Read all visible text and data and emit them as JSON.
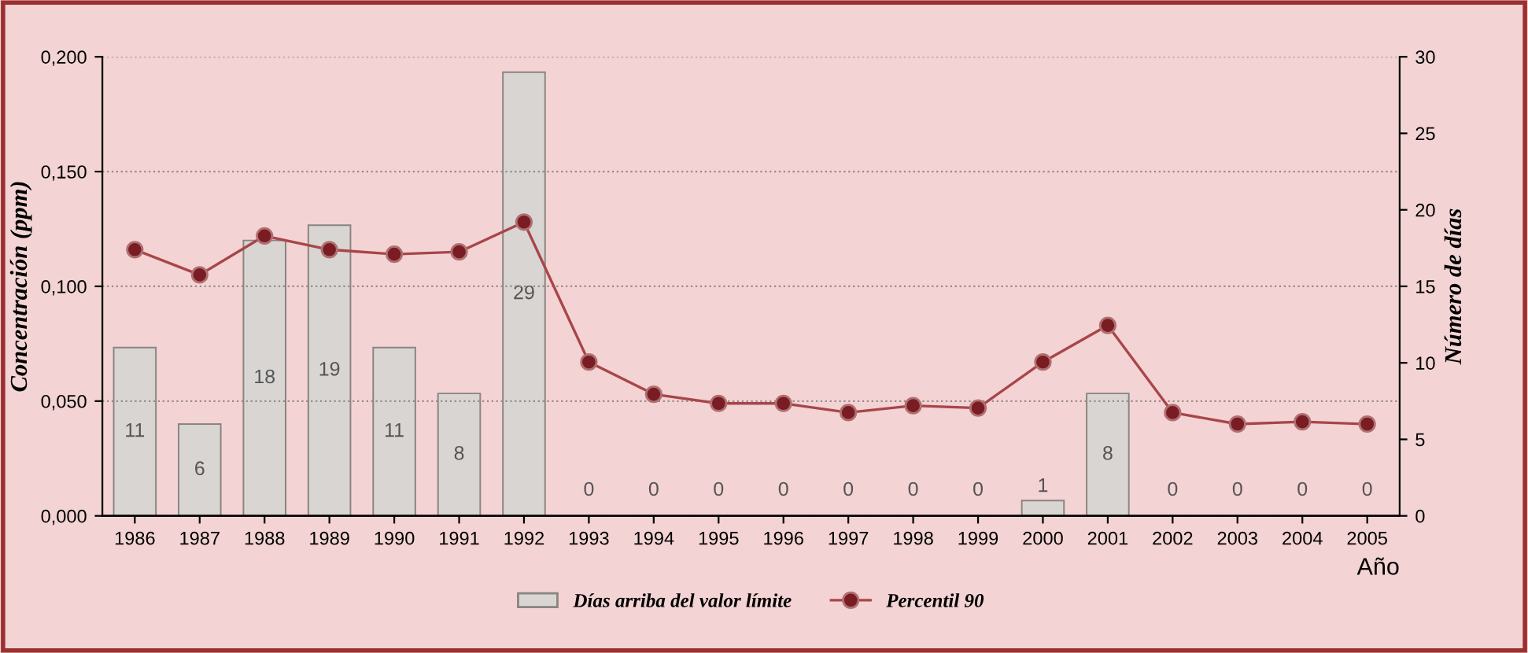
{
  "chart_data": {
    "type": "bar",
    "categories": [
      "1986",
      "1987",
      "1988",
      "1989",
      "1990",
      "1991",
      "1992",
      "1993",
      "1994",
      "1995",
      "1996",
      "1997",
      "1998",
      "1999",
      "2000",
      "2001",
      "2002",
      "2003",
      "2004",
      "2005"
    ],
    "series": [
      {
        "name": "Días arriba del valor límite",
        "axis": "y2",
        "color": "#d8d5d2",
        "values": [
          11,
          6,
          18,
          19,
          11,
          8,
          29,
          0,
          0,
          0,
          0,
          0,
          0,
          0,
          1,
          8,
          0,
          0,
          0,
          0
        ],
        "value_labels": [
          "11",
          "6",
          "18",
          "19",
          "11",
          "8",
          "29",
          "0",
          "0",
          "0",
          "0",
          "0",
          "0",
          "0",
          "1",
          "8",
          "0",
          "0",
          "0",
          "0"
        ]
      },
      {
        "name": "Percentil 90",
        "type": "line",
        "axis": "y",
        "color": "#a8454a",
        "marker": "circle",
        "values": [
          0.116,
          0.105,
          0.122,
          0.116,
          0.114,
          0.115,
          0.128,
          0.067,
          0.053,
          0.049,
          0.049,
          0.045,
          0.048,
          0.047,
          0.067,
          0.083,
          0.045,
          0.04,
          0.041,
          0.04
        ]
      }
    ],
    "ylabel": "Concentración (ppm)",
    "y2label": "Número de días",
    "xlabel": "Año",
    "ylim": [
      0,
      0.2
    ],
    "yticks": [
      {
        "value": 0,
        "label": "0,000"
      },
      {
        "value": 0.05,
        "label": "0,050"
      },
      {
        "value": 0.1,
        "label": "0,100"
      },
      {
        "value": 0.15,
        "label": "0,150"
      },
      {
        "value": 0.2,
        "label": "0,200"
      }
    ],
    "y2lim": [
      0,
      30
    ],
    "y2ticks": [
      0,
      5,
      10,
      15,
      20,
      25,
      30
    ],
    "grid": "y",
    "legend": "bottom"
  }
}
